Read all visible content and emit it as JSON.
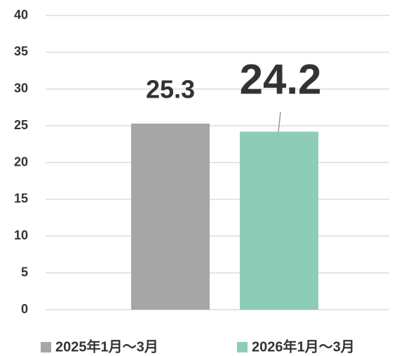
{
  "chart_data": {
    "type": "bar",
    "categories": [
      "2025年1月～3月",
      "2026年1月～3月"
    ],
    "values": [
      25.3,
      24.2
    ],
    "colors": [
      "#a6a6a6",
      "#8dcdb7"
    ],
    "label_colors": [
      "#222222",
      "#8dcdb7"
    ],
    "ylim": [
      0,
      40
    ],
    "yticks": [
      0,
      5,
      10,
      15,
      20,
      25,
      30,
      35,
      40
    ],
    "grid": true,
    "legend": "bottom"
  }
}
